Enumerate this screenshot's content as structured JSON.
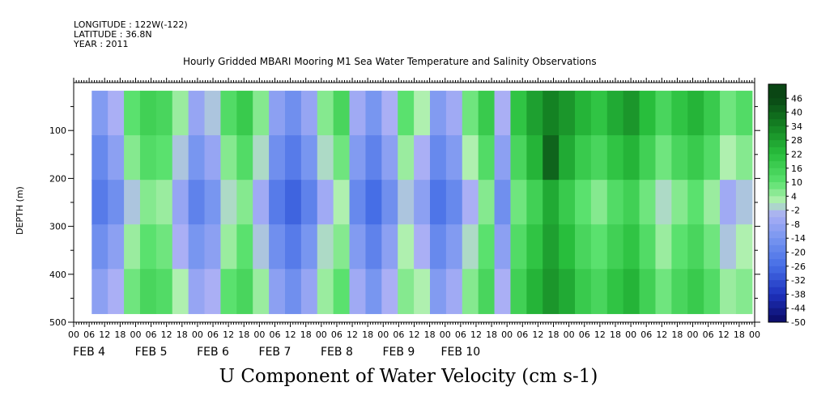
{
  "meta": {
    "longitude": "LONGITUDE : 122W(-122)",
    "latitude": "LATITUDE : 36.8N",
    "year": "YEAR : 2011"
  },
  "header": {
    "title": "Hourly Gridded MBARI Mooring M1 Sea Water Temperature and Salinity Observations"
  },
  "footer": {
    "caption": "U Component of Water Velocity (cm s-1)"
  },
  "chart_data": {
    "type": "heatmap",
    "title": "Hourly Gridded MBARI Mooring M1 Sea Water Temperature and Salinity Observations",
    "variable": "U Component of Water Velocity (cm s-1)",
    "ylabel": "DEPTH (m)",
    "y_reversed": true,
    "ylim": [
      0,
      500
    ],
    "y_ticks": [
      100,
      200,
      300,
      400,
      500
    ],
    "x_hour_labels": [
      "00",
      "06",
      "12",
      "18",
      "00",
      "06",
      "12",
      "18",
      "00",
      "06",
      "12",
      "18",
      "00",
      "06",
      "12",
      "18",
      "00",
      "06",
      "12",
      "18",
      "00",
      "06",
      "12",
      "18",
      "00",
      "06",
      "12",
      "18",
      "00",
      "06",
      "12",
      "18",
      "00",
      "06",
      "12",
      "18",
      "00",
      "06",
      "12",
      "18",
      "00",
      "06",
      "12",
      "18",
      "00"
    ],
    "x_day_labels": [
      "FEB 4",
      "FEB 5",
      "FEB 6",
      "FEB 7",
      "FEB 8",
      "FEB 9",
      "FEB 10"
    ],
    "colorbar": {
      "labels": [
        "46",
        "40",
        "34",
        "28",
        "22",
        "16",
        "10",
        "4",
        "-2",
        "-8",
        "-14",
        "-20",
        "-26",
        "-32",
        "-38",
        "-44",
        "-50"
      ],
      "range": [
        -50,
        52
      ],
      "step": 3
    },
    "data_extent": {
      "depth_range": [
        17,
        482
      ],
      "time_start": "Feb 4 07:00",
      "time_end": "Feb 10 23:00"
    },
    "profile_values": [
      [
        -12,
        -4,
        10,
        16,
        14,
        4,
        -8,
        -2,
        12,
        18,
        6,
        -10,
        -16,
        -8,
        6,
        14,
        -6,
        -14,
        -4,
        10,
        2,
        -12,
        -6,
        8,
        18,
        -4,
        20,
        28,
        34,
        30,
        24,
        20,
        26,
        30,
        22,
        14,
        20,
        24,
        18,
        8,
        12
      ],
      [
        -18,
        -10,
        6,
        12,
        10,
        -2,
        -14,
        -8,
        6,
        12,
        0,
        -16,
        -22,
        -14,
        0,
        8,
        -12,
        -20,
        -10,
        4,
        -4,
        -18,
        -12,
        2,
        12,
        -10,
        14,
        24,
        40,
        26,
        18,
        14,
        20,
        24,
        16,
        8,
        14,
        18,
        12,
        2,
        6
      ],
      [
        -22,
        -16,
        -2,
        6,
        4,
        -8,
        -20,
        -14,
        0,
        6,
        -6,
        -22,
        -28,
        -20,
        -6,
        2,
        -18,
        -26,
        -16,
        -2,
        -10,
        -24,
        -18,
        -4,
        6,
        -16,
        8,
        16,
        26,
        18,
        10,
        6,
        12,
        16,
        8,
        0,
        6,
        10,
        4,
        -6,
        -2
      ],
      [
        -16,
        -10,
        4,
        10,
        8,
        -4,
        -14,
        -10,
        4,
        10,
        -2,
        -16,
        -22,
        -14,
        0,
        6,
        -12,
        -20,
        -10,
        2,
        -4,
        -18,
        -12,
        0,
        10,
        -10,
        12,
        20,
        28,
        22,
        14,
        10,
        16,
        20,
        12,
        4,
        10,
        14,
        8,
        -2,
        2
      ],
      [
        -10,
        -4,
        8,
        14,
        12,
        2,
        -8,
        -4,
        10,
        14,
        4,
        -10,
        -16,
        -8,
        4,
        10,
        -6,
        -14,
        -4,
        6,
        2,
        -12,
        -6,
        6,
        14,
        -4,
        16,
        24,
        30,
        26,
        18,
        14,
        20,
        24,
        16,
        8,
        14,
        18,
        12,
        4,
        6
      ]
    ]
  }
}
